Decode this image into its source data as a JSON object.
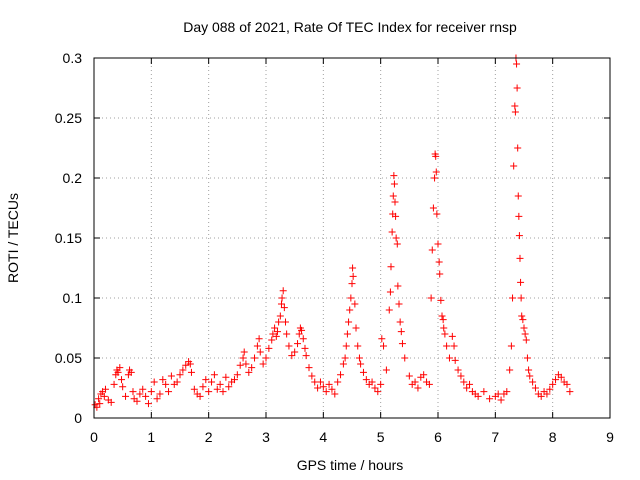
{
  "chart_data": {
    "type": "scatter",
    "title": "Day 088 of 2021, Rate Of TEC Index for receiver rnsp",
    "xlabel": "GPS time / hours",
    "ylabel": "ROTI / TECUs",
    "xlim": [
      0,
      9
    ],
    "ylim": [
      0,
      0.3
    ],
    "xticks": [
      "0",
      "1",
      "2",
      "3",
      "4",
      "5",
      "6",
      "7",
      "8",
      "9"
    ],
    "yticks": [
      "0",
      "0.05",
      "0.1",
      "0.15",
      "0.2",
      "0.25",
      "0.3"
    ],
    "grid": true,
    "marker": "+",
    "color": "#ff0000",
    "series": [
      {
        "name": "ROTI",
        "points": [
          [
            0.02,
            0.011
          ],
          [
            0.05,
            0.009
          ],
          [
            0.08,
            0.016
          ],
          [
            0.1,
            0.012
          ],
          [
            0.12,
            0.02
          ],
          [
            0.15,
            0.022
          ],
          [
            0.18,
            0.018
          ],
          [
            0.2,
            0.024
          ],
          [
            0.25,
            0.015
          ],
          [
            0.3,
            0.013
          ],
          [
            0.35,
            0.028
          ],
          [
            0.38,
            0.036
          ],
          [
            0.4,
            0.04
          ],
          [
            0.42,
            0.038
          ],
          [
            0.45,
            0.042
          ],
          [
            0.48,
            0.032
          ],
          [
            0.5,
            0.026
          ],
          [
            0.55,
            0.018
          ],
          [
            0.6,
            0.036
          ],
          [
            0.62,
            0.04
          ],
          [
            0.65,
            0.038
          ],
          [
            0.68,
            0.022
          ],
          [
            0.7,
            0.016
          ],
          [
            0.75,
            0.014
          ],
          [
            0.8,
            0.02
          ],
          [
            0.85,
            0.024
          ],
          [
            0.9,
            0.018
          ],
          [
            0.95,
            0.012
          ],
          [
            1.0,
            0.022
          ],
          [
            1.05,
            0.03
          ],
          [
            1.1,
            0.016
          ],
          [
            1.15,
            0.02
          ],
          [
            1.2,
            0.032
          ],
          [
            1.25,
            0.028
          ],
          [
            1.3,
            0.022
          ],
          [
            1.35,
            0.035
          ],
          [
            1.4,
            0.028
          ],
          [
            1.45,
            0.03
          ],
          [
            1.5,
            0.036
          ],
          [
            1.55,
            0.04
          ],
          [
            1.6,
            0.044
          ],
          [
            1.65,
            0.047
          ],
          [
            1.68,
            0.045
          ],
          [
            1.7,
            0.038
          ],
          [
            1.75,
            0.024
          ],
          [
            1.8,
            0.02
          ],
          [
            1.85,
            0.018
          ],
          [
            1.9,
            0.026
          ],
          [
            1.95,
            0.032
          ],
          [
            2.0,
            0.022
          ],
          [
            2.05,
            0.03
          ],
          [
            2.1,
            0.036
          ],
          [
            2.15,
            0.024
          ],
          [
            2.2,
            0.028
          ],
          [
            2.25,
            0.022
          ],
          [
            2.3,
            0.034
          ],
          [
            2.35,
            0.026
          ],
          [
            2.4,
            0.03
          ],
          [
            2.45,
            0.032
          ],
          [
            2.5,
            0.036
          ],
          [
            2.55,
            0.044
          ],
          [
            2.6,
            0.05
          ],
          [
            2.62,
            0.055
          ],
          [
            2.65,
            0.045
          ],
          [
            2.7,
            0.038
          ],
          [
            2.75,
            0.042
          ],
          [
            2.8,
            0.05
          ],
          [
            2.85,
            0.06
          ],
          [
            2.88,
            0.066
          ],
          [
            2.9,
            0.055
          ],
          [
            2.95,
            0.045
          ],
          [
            3.0,
            0.05
          ],
          [
            3.05,
            0.058
          ],
          [
            3.1,
            0.065
          ],
          [
            3.12,
            0.07
          ],
          [
            3.15,
            0.075
          ],
          [
            3.18,
            0.068
          ],
          [
            3.2,
            0.072
          ],
          [
            3.22,
            0.08
          ],
          [
            3.25,
            0.085
          ],
          [
            3.27,
            0.095
          ],
          [
            3.28,
            0.1
          ],
          [
            3.3,
            0.106
          ],
          [
            3.32,
            0.092
          ],
          [
            3.34,
            0.08
          ],
          [
            3.36,
            0.07
          ],
          [
            3.4,
            0.06
          ],
          [
            3.45,
            0.052
          ],
          [
            3.5,
            0.055
          ],
          [
            3.55,
            0.062
          ],
          [
            3.58,
            0.07
          ],
          [
            3.6,
            0.075
          ],
          [
            3.62,
            0.073
          ],
          [
            3.65,
            0.066
          ],
          [
            3.68,
            0.058
          ],
          [
            3.7,
            0.052
          ],
          [
            3.75,
            0.042
          ],
          [
            3.8,
            0.035
          ],
          [
            3.85,
            0.03
          ],
          [
            3.9,
            0.025
          ],
          [
            3.95,
            0.03
          ],
          [
            4.0,
            0.026
          ],
          [
            4.05,
            0.022
          ],
          [
            4.1,
            0.028
          ],
          [
            4.15,
            0.024
          ],
          [
            4.2,
            0.02
          ],
          [
            4.25,
            0.03
          ],
          [
            4.3,
            0.036
          ],
          [
            4.35,
            0.045
          ],
          [
            4.38,
            0.05
          ],
          [
            4.4,
            0.06
          ],
          [
            4.42,
            0.07
          ],
          [
            4.44,
            0.08
          ],
          [
            4.46,
            0.09
          ],
          [
            4.48,
            0.1
          ],
          [
            4.5,
            0.112
          ],
          [
            4.51,
            0.125
          ],
          [
            4.52,
            0.118
          ],
          [
            4.55,
            0.095
          ],
          [
            4.57,
            0.075
          ],
          [
            4.6,
            0.06
          ],
          [
            4.63,
            0.05
          ],
          [
            4.65,
            0.045
          ],
          [
            4.7,
            0.038
          ],
          [
            4.75,
            0.032
          ],
          [
            4.8,
            0.028
          ],
          [
            4.85,
            0.03
          ],
          [
            4.9,
            0.025
          ],
          [
            4.95,
            0.022
          ],
          [
            5.0,
            0.028
          ],
          [
            5.02,
            0.066
          ],
          [
            5.05,
            0.06
          ],
          [
            5.1,
            0.04
          ],
          [
            5.15,
            0.09
          ],
          [
            5.17,
            0.105
          ],
          [
            5.18,
            0.126
          ],
          [
            5.2,
            0.155
          ],
          [
            5.21,
            0.17
          ],
          [
            5.22,
            0.185
          ],
          [
            5.23,
            0.202
          ],
          [
            5.24,
            0.195
          ],
          [
            5.25,
            0.18
          ],
          [
            5.26,
            0.168
          ],
          [
            5.27,
            0.15
          ],
          [
            5.29,
            0.145
          ],
          [
            5.3,
            0.11
          ],
          [
            5.32,
            0.095
          ],
          [
            5.34,
            0.08
          ],
          [
            5.36,
            0.072
          ],
          [
            5.38,
            0.062
          ],
          [
            5.42,
            0.05
          ],
          [
            5.5,
            0.035
          ],
          [
            5.55,
            0.028
          ],
          [
            5.6,
            0.03
          ],
          [
            5.65,
            0.025
          ],
          [
            5.7,
            0.034
          ],
          [
            5.75,
            0.036
          ],
          [
            5.8,
            0.03
          ],
          [
            5.85,
            0.028
          ],
          [
            5.88,
            0.1
          ],
          [
            5.9,
            0.14
          ],
          [
            5.92,
            0.175
          ],
          [
            5.94,
            0.2
          ],
          [
            5.95,
            0.22
          ],
          [
            5.96,
            0.218
          ],
          [
            5.97,
            0.205
          ],
          [
            5.98,
            0.17
          ],
          [
            6.0,
            0.145
          ],
          [
            6.02,
            0.13
          ],
          [
            6.03,
            0.12
          ],
          [
            6.05,
            0.098
          ],
          [
            6.07,
            0.085
          ],
          [
            6.09,
            0.082
          ],
          [
            6.1,
            0.075
          ],
          [
            6.12,
            0.07
          ],
          [
            6.15,
            0.06
          ],
          [
            6.2,
            0.05
          ],
          [
            6.25,
            0.068
          ],
          [
            6.28,
            0.06
          ],
          [
            6.3,
            0.048
          ],
          [
            6.35,
            0.04
          ],
          [
            6.4,
            0.035
          ],
          [
            6.45,
            0.03
          ],
          [
            6.5,
            0.025
          ],
          [
            6.55,
            0.028
          ],
          [
            6.6,
            0.022
          ],
          [
            6.65,
            0.02
          ],
          [
            6.7,
            0.018
          ],
          [
            6.8,
            0.022
          ],
          [
            6.9,
            0.016
          ],
          [
            7.0,
            0.018
          ],
          [
            7.05,
            0.02
          ],
          [
            7.1,
            0.015
          ],
          [
            7.15,
            0.02
          ],
          [
            7.2,
            0.022
          ],
          [
            7.25,
            0.04
          ],
          [
            7.28,
            0.06
          ],
          [
            7.3,
            0.1
          ],
          [
            7.32,
            0.21
          ],
          [
            7.34,
            0.26
          ],
          [
            7.35,
            0.255
          ],
          [
            7.36,
            0.3
          ],
          [
            7.37,
            0.295
          ],
          [
            7.38,
            0.275
          ],
          [
            7.39,
            0.225
          ],
          [
            7.4,
            0.185
          ],
          [
            7.41,
            0.168
          ],
          [
            7.42,
            0.152
          ],
          [
            7.43,
            0.133
          ],
          [
            7.44,
            0.113
          ],
          [
            7.45,
            0.1
          ],
          [
            7.46,
            0.085
          ],
          [
            7.48,
            0.082
          ],
          [
            7.5,
            0.075
          ],
          [
            7.52,
            0.07
          ],
          [
            7.54,
            0.065
          ],
          [
            7.56,
            0.05
          ],
          [
            7.58,
            0.04
          ],
          [
            7.6,
            0.035
          ],
          [
            7.65,
            0.03
          ],
          [
            7.7,
            0.025
          ],
          [
            7.75,
            0.02
          ],
          [
            7.8,
            0.018
          ],
          [
            7.85,
            0.022
          ],
          [
            7.9,
            0.02
          ],
          [
            7.95,
            0.024
          ],
          [
            8.0,
            0.028
          ],
          [
            8.05,
            0.032
          ],
          [
            8.1,
            0.036
          ],
          [
            8.15,
            0.034
          ],
          [
            8.2,
            0.03
          ],
          [
            8.25,
            0.028
          ],
          [
            8.3,
            0.022
          ]
        ]
      }
    ]
  }
}
